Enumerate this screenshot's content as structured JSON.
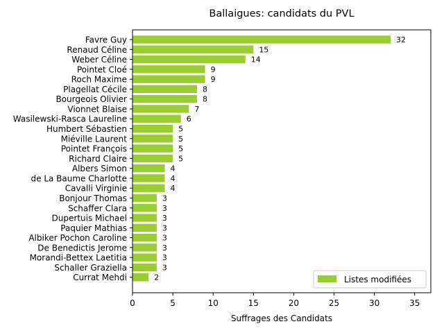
{
  "chart_data": {
    "type": "bar",
    "orientation": "horizontal",
    "title": "Ballaigues: candidats du PVL",
    "xlabel": "Suffrages des Candidats",
    "ylabel": "",
    "xlim": [
      0,
      37
    ],
    "xticks": [
      0,
      5,
      10,
      15,
      20,
      25,
      30,
      35
    ],
    "grid": false,
    "legend_position": "lower-right",
    "bar_color": "#9acd32",
    "categories": [
      "Favre Guy",
      "Renaud Céline",
      "Weber Céline",
      "Pointet Cloé",
      "Roch Maxime",
      "Plagellat Cécile",
      "Bourgeois Olivier",
      "Vionnet Blaise",
      "Wasilewski-Rasca Laureline",
      "Humbert Sébastien",
      "Miéville Laurent",
      "Pointet François",
      "Richard Claire",
      "Albers Simon",
      "de La Baume Charlotte",
      "Cavalli Virginie",
      "Bonjour Thomas",
      "Schaffer Clara",
      "Dupertuis Michael",
      "Paquier Mathias",
      "Albiker Pochon Caroline",
      "De Benedictis Jerome",
      "Morandi-Bettex Laetitia",
      "Schaller Graziella",
      "Currat Mehdi"
    ],
    "series": [
      {
        "name": "Listes modifiées",
        "values": [
          32,
          15,
          14,
          9,
          9,
          8,
          8,
          7,
          6,
          5,
          5,
          5,
          5,
          4,
          4,
          4,
          3,
          3,
          3,
          3,
          3,
          3,
          3,
          3,
          2
        ]
      }
    ]
  }
}
